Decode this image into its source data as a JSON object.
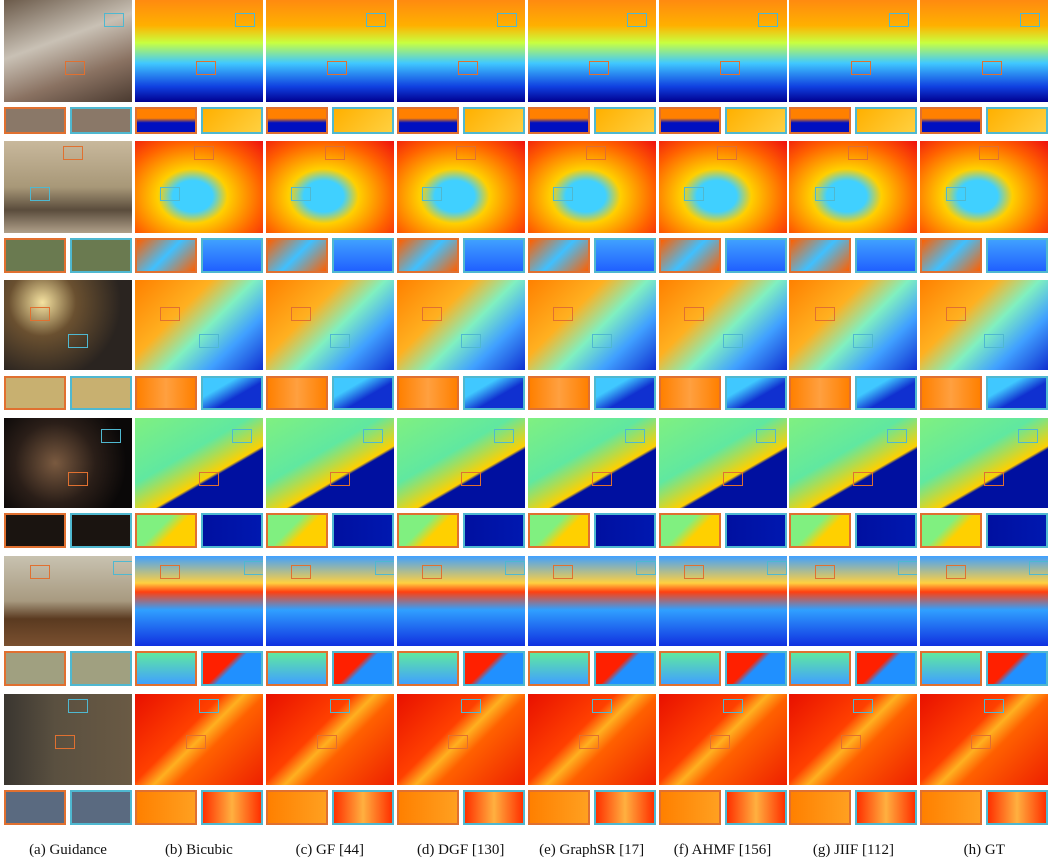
{
  "figure": {
    "captions": [
      "(a) Guidance",
      "(b) Bicubic",
      "(c) GF [44]",
      "(d) DGF [130]",
      "(e) GraphSR [17]",
      "(f) AHMF [156]",
      "(g) JIIF [112]",
      "(h) GT"
    ]
  }
}
